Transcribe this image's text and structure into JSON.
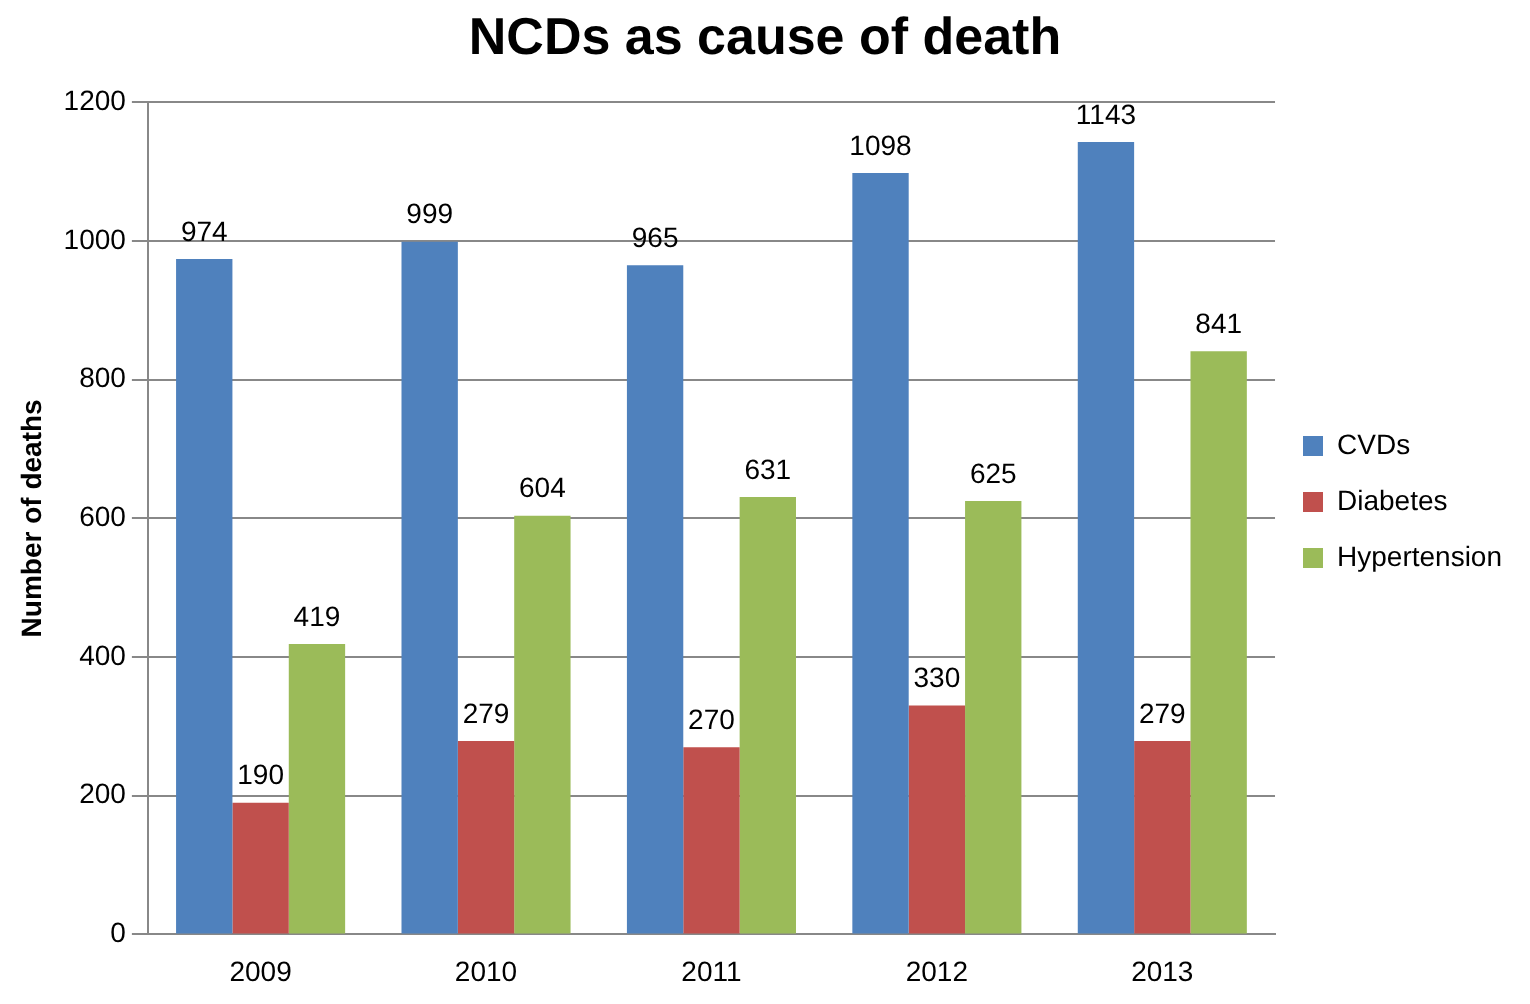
{
  "chart_data": {
    "type": "bar",
    "title": "NCDs as cause of death",
    "ylabel": "Number of deaths",
    "categories": [
      "2009",
      "2010",
      "2011",
      "2012",
      "2013"
    ],
    "series": [
      {
        "name": "CVDs",
        "color": "#4f81bd",
        "values": [
          974,
          999,
          965,
          1098,
          1143
        ]
      },
      {
        "name": "Diabetes",
        "color": "#c0504d",
        "values": [
          190,
          279,
          270,
          330,
          279
        ]
      },
      {
        "name": "Hypertension",
        "color": "#9bbb59",
        "values": [
          419,
          604,
          631,
          625,
          841
        ]
      }
    ],
    "ylim": [
      0,
      1200
    ],
    "yticks": [
      0,
      200,
      400,
      600,
      800,
      1000,
      1200
    ],
    "grid": "y",
    "legend": "right",
    "data_labels": true
  }
}
